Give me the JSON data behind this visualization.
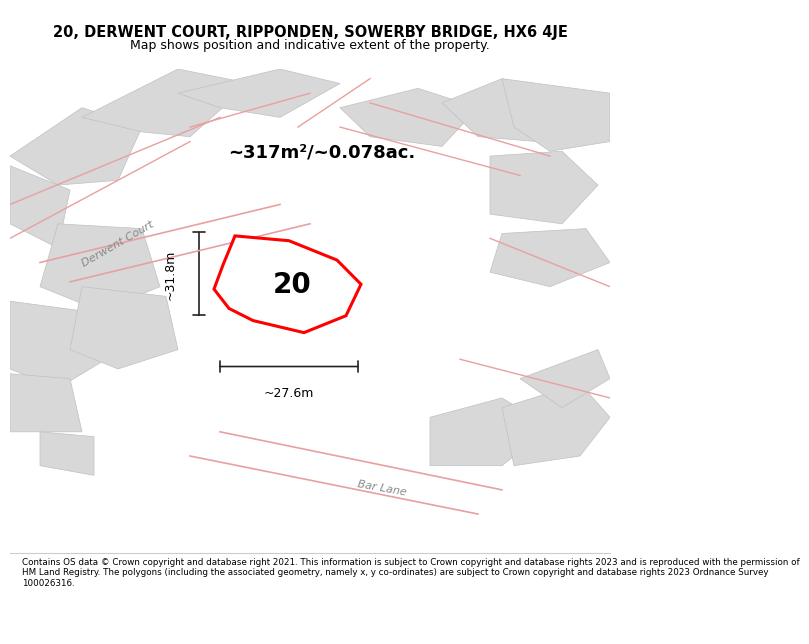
{
  "title_line1": "20, DERWENT COURT, RIPPONDEN, SOWERBY BRIDGE, HX6 4JE",
  "title_line2": "Map shows position and indicative extent of the property.",
  "area_text": "~317m²/~0.078ac.",
  "label_number": "20",
  "dim_width": "~27.6m",
  "dim_height": "~31.8m",
  "road_label1": "Derwent Court",
  "road_label2": "Bar Lane",
  "footer_text": "Contains OS data © Crown copyright and database right 2021. This information is subject to Crown copyright and database rights 2023 and is reproduced with the permission of\nHM Land Registry. The polygons (including the associated geometry, namely x, y co-ordinates) are subject to Crown copyright and database rights 2023 Ordnance Survey\n100026316.",
  "map_bg": "#eeecec",
  "building_fill": "#d8d8d8",
  "road_line_color": "#e8a0a0",
  "highlight_fill": "#ffffff",
  "highlight_stroke": "#ff0000",
  "dim_line_color": "#222222",
  "title_bg": "#ffffff",
  "footer_bg": "#ffffff"
}
